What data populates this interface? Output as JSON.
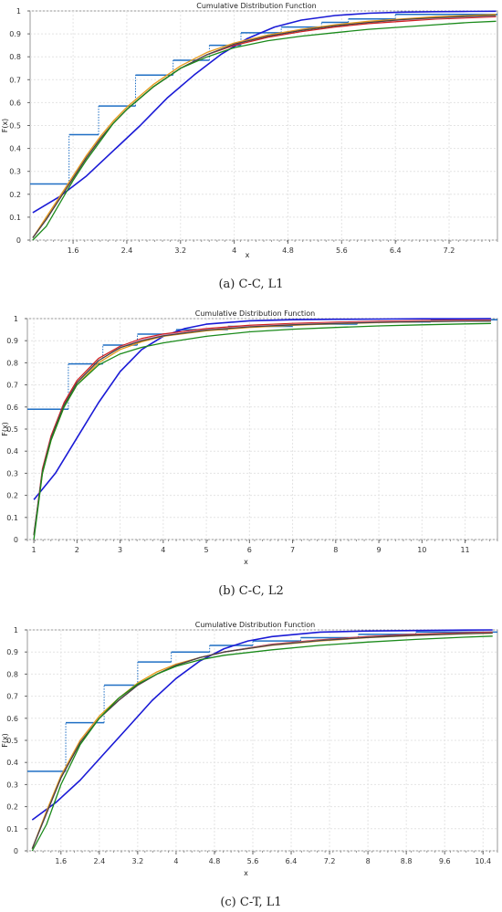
{
  "chart_data": [
    {
      "type": "line",
      "title": "Cumulative Distribution Function",
      "xlabel": "x",
      "ylabel": "F(x)",
      "caption": "(a) C-C, L1",
      "xlim": [
        0.96,
        7.92
      ],
      "ylim": [
        0,
        1
      ],
      "xticks": [
        1.6,
        2.4,
        3.2,
        4,
        4.8,
        5.6,
        6.4,
        7.2
      ],
      "xtick_labels": [
        "1.6",
        "2.4",
        "3.2",
        "4",
        "4.8",
        "5.6",
        "6.4",
        "7.2"
      ],
      "yticks": [
        0,
        0.1,
        0.2,
        0.3,
        0.4,
        0.5,
        0.6,
        0.7,
        0.8,
        0.9,
        1
      ],
      "ytick_labels": [
        "0",
        "0.1",
        "0.2",
        "0.3",
        "0.4",
        "0.5",
        "0.6",
        "0.7",
        "0.8",
        "0.9",
        "1"
      ],
      "grid": true,
      "step": {
        "color": "#1f6fc4",
        "x": [
          0.96,
          1.54,
          1.98,
          2.53,
          3.09,
          3.63,
          4.1,
          4.7,
          5.3,
          5.7,
          6.4,
          7.92
        ],
        "y": [
          0.245,
          0.46,
          0.585,
          0.72,
          0.785,
          0.85,
          0.905,
          0.93,
          0.95,
          0.965,
          0.985,
          1.0
        ]
      },
      "series": [
        {
          "color": "#1a1ad6",
          "x": [
            1.0,
            1.4,
            1.8,
            2.2,
            2.6,
            3.0,
            3.4,
            3.8,
            4.2,
            4.6,
            5.0,
            5.5,
            6.0,
            6.5,
            7.0,
            7.5,
            7.9
          ],
          "y": [
            0.12,
            0.19,
            0.28,
            0.39,
            0.5,
            0.62,
            0.72,
            0.81,
            0.88,
            0.93,
            0.96,
            0.98,
            0.99,
            0.995,
            0.997,
            0.998,
            0.999
          ]
        },
        {
          "color": "#e69a1a",
          "x": [
            1.0,
            1.2,
            1.4,
            1.6,
            1.8,
            2.0,
            2.2,
            2.4,
            2.8,
            3.2,
            3.6,
            4.0,
            4.5,
            5.0,
            5.5,
            6.0,
            6.5,
            7.0,
            7.5,
            7.9
          ],
          "y": [
            0.01,
            0.1,
            0.19,
            0.28,
            0.37,
            0.45,
            0.52,
            0.58,
            0.68,
            0.76,
            0.82,
            0.86,
            0.895,
            0.92,
            0.94,
            0.955,
            0.965,
            0.975,
            0.98,
            0.985
          ]
        },
        {
          "color": "#d02020",
          "x": [
            1.0,
            1.2,
            1.4,
            1.6,
            1.8,
            2.0,
            2.2,
            2.4,
            2.8,
            3.2,
            3.6,
            4.0,
            4.5,
            5.0,
            5.5,
            6.0,
            6.5,
            7.0,
            7.5,
            7.9
          ],
          "y": [
            0.01,
            0.09,
            0.18,
            0.27,
            0.36,
            0.44,
            0.51,
            0.57,
            0.67,
            0.75,
            0.81,
            0.85,
            0.885,
            0.91,
            0.93,
            0.945,
            0.955,
            0.965,
            0.97,
            0.975
          ]
        },
        {
          "color": "#e8a0c0",
          "x": [
            1.0,
            1.2,
            1.4,
            1.6,
            1.8,
            2.0,
            2.2,
            2.4,
            2.8,
            3.2,
            3.6,
            4.0,
            4.5,
            5.0,
            5.5,
            6.0,
            6.5,
            7.0,
            7.5,
            7.9
          ],
          "y": [
            0.01,
            0.09,
            0.18,
            0.27,
            0.36,
            0.44,
            0.51,
            0.57,
            0.67,
            0.75,
            0.81,
            0.855,
            0.89,
            0.915,
            0.935,
            0.95,
            0.96,
            0.968,
            0.974,
            0.978
          ]
        },
        {
          "color": "#444444",
          "x": [
            1.0,
            1.2,
            1.4,
            1.6,
            1.8,
            2.0,
            2.2,
            2.4,
            2.8,
            3.2,
            3.6,
            4.0,
            4.5,
            5.0,
            5.5,
            6.0,
            6.5,
            7.0,
            7.5,
            7.9
          ],
          "y": [
            0.01,
            0.09,
            0.18,
            0.27,
            0.36,
            0.44,
            0.51,
            0.57,
            0.67,
            0.75,
            0.81,
            0.855,
            0.89,
            0.915,
            0.935,
            0.95,
            0.962,
            0.97,
            0.976,
            0.98
          ]
        },
        {
          "color": "#1a8a1a",
          "x": [
            1.0,
            1.2,
            1.4,
            1.6,
            1.8,
            2.0,
            2.2,
            2.4,
            2.8,
            3.2,
            3.6,
            4.0,
            4.5,
            5.0,
            5.5,
            6.0,
            6.5,
            7.0,
            7.5,
            7.9
          ],
          "y": [
            0.0,
            0.06,
            0.16,
            0.26,
            0.35,
            0.43,
            0.51,
            0.57,
            0.67,
            0.75,
            0.8,
            0.84,
            0.87,
            0.89,
            0.905,
            0.92,
            0.93,
            0.94,
            0.95,
            0.955
          ]
        }
      ]
    },
    {
      "type": "line",
      "title": "Cumulative Distribution Function",
      "xlabel": "x",
      "ylabel": "F(x)",
      "caption": "(b) C-C, L2",
      "xlim": [
        0.85,
        11.75
      ],
      "ylim": [
        0,
        1
      ],
      "xticks": [
        1,
        2,
        3,
        4,
        5,
        6,
        7,
        8,
        9,
        10,
        11
      ],
      "xtick_labels": [
        "1",
        "2",
        "3",
        "4",
        "5",
        "6",
        "7",
        "8",
        "9",
        "10",
        "11"
      ],
      "yticks": [
        0,
        0.1,
        0.2,
        0.3,
        0.4,
        0.5,
        0.6,
        0.7,
        0.8,
        0.9,
        1
      ],
      "ytick_labels": [
        "0",
        "0.1",
        "0.2",
        "0.3",
        "0.4",
        "0.5",
        "0.6",
        "0.7",
        "0.8",
        "0.9",
        "1"
      ],
      "grid": true,
      "step": {
        "color": "#1f6fc4",
        "x": [
          0.85,
          1.8,
          2.6,
          3.4,
          4.3,
          5.5,
          7.0,
          8.5,
          10.2,
          11.75
        ],
        "y": [
          0.59,
          0.795,
          0.88,
          0.93,
          0.95,
          0.965,
          0.975,
          0.985,
          0.995,
          1.0
        ]
      },
      "series": [
        {
          "color": "#1a1ad6",
          "x": [
            1.0,
            1.5,
            2.0,
            2.5,
            3.0,
            3.5,
            4.0,
            4.5,
            5.0,
            6.0,
            7.0,
            8.0,
            9.0,
            10.0,
            11.0,
            11.6
          ],
          "y": [
            0.18,
            0.3,
            0.46,
            0.62,
            0.76,
            0.86,
            0.92,
            0.955,
            0.975,
            0.99,
            0.995,
            0.997,
            0.998,
            0.999,
            0.999,
            1.0
          ]
        },
        {
          "color": "#e69a1a",
          "x": [
            1.0,
            1.2,
            1.4,
            1.7,
            2.0,
            2.5,
            3.0,
            3.5,
            4.0,
            5.0,
            6.0,
            7.0,
            8.0,
            9.0,
            10.0,
            11.0,
            11.6
          ],
          "y": [
            0.02,
            0.3,
            0.45,
            0.6,
            0.7,
            0.8,
            0.86,
            0.895,
            0.92,
            0.945,
            0.96,
            0.97,
            0.977,
            0.982,
            0.986,
            0.989,
            0.99
          ]
        },
        {
          "color": "#d02020",
          "x": [
            1.0,
            1.2,
            1.4,
            1.7,
            2.0,
            2.5,
            3.0,
            3.5,
            4.0,
            5.0,
            6.0,
            7.0,
            8.0,
            9.0,
            10.0,
            11.0,
            11.6
          ],
          "y": [
            0.02,
            0.32,
            0.47,
            0.62,
            0.72,
            0.82,
            0.875,
            0.91,
            0.93,
            0.955,
            0.97,
            0.978,
            0.984,
            0.988,
            0.991,
            0.993,
            0.994
          ]
        },
        {
          "color": "#e8a0c0",
          "x": [
            1.0,
            1.2,
            1.4,
            1.7,
            2.0,
            2.5,
            3.0,
            3.5,
            4.0,
            5.0,
            6.0,
            7.0,
            8.0,
            9.0,
            10.0,
            11.0,
            11.6
          ],
          "y": [
            0.02,
            0.31,
            0.46,
            0.61,
            0.71,
            0.81,
            0.87,
            0.905,
            0.925,
            0.95,
            0.965,
            0.974,
            0.98,
            0.985,
            0.988,
            0.99,
            0.991
          ]
        },
        {
          "color": "#444444",
          "x": [
            1.0,
            1.2,
            1.4,
            1.7,
            2.0,
            2.5,
            3.0,
            3.5,
            4.0,
            5.0,
            6.0,
            7.0,
            8.0,
            9.0,
            10.0,
            11.0,
            11.6
          ],
          "y": [
            0.02,
            0.31,
            0.46,
            0.61,
            0.71,
            0.81,
            0.868,
            0.9,
            0.922,
            0.948,
            0.963,
            0.972,
            0.978,
            0.983,
            0.986,
            0.988,
            0.989
          ]
        },
        {
          "color": "#1a8a1a",
          "x": [
            1.0,
            1.2,
            1.4,
            1.7,
            2.0,
            2.5,
            3.0,
            3.5,
            4.0,
            5.0,
            6.0,
            7.0,
            8.0,
            9.0,
            10.0,
            11.0,
            11.6
          ],
          "y": [
            0.0,
            0.3,
            0.45,
            0.6,
            0.7,
            0.79,
            0.84,
            0.87,
            0.89,
            0.92,
            0.94,
            0.952,
            0.96,
            0.967,
            0.972,
            0.976,
            0.978
          ]
        }
      ]
    },
    {
      "type": "line",
      "title": "Cumulative Distribution Function",
      "xlabel": "x",
      "ylabel": "F(x)",
      "caption": "(c) C-T, L1",
      "xlim": [
        0.9,
        10.7
      ],
      "ylim": [
        0,
        1
      ],
      "xticks": [
        1.6,
        2.4,
        3.2,
        4,
        4.8,
        5.6,
        6.4,
        7.2,
        8,
        8.8,
        9.6,
        10.4
      ],
      "xtick_labels": [
        "1.6",
        "2.4",
        "3.2",
        "4",
        "4.8",
        "5.6",
        "6.4",
        "7.2",
        "8",
        "8.8",
        "9.6",
        "10.4"
      ],
      "yticks": [
        0,
        0.1,
        0.2,
        0.3,
        0.4,
        0.5,
        0.6,
        0.7,
        0.8,
        0.9,
        1
      ],
      "ytick_labels": [
        "0",
        "0.1",
        "0.2",
        "0.3",
        "0.4",
        "0.5",
        "0.6",
        "0.7",
        "0.8",
        "0.9",
        "1"
      ],
      "grid": true,
      "step": {
        "color": "#1f6fc4",
        "x": [
          0.9,
          1.7,
          2.5,
          3.2,
          3.9,
          4.7,
          5.6,
          6.6,
          7.8,
          9.0,
          10.7
        ],
        "y": [
          0.36,
          0.58,
          0.75,
          0.855,
          0.9,
          0.93,
          0.95,
          0.965,
          0.98,
          0.99,
          1.0
        ]
      },
      "series": [
        {
          "color": "#1a1ad6",
          "x": [
            1.0,
            1.5,
            2.0,
            2.5,
            3.0,
            3.5,
            4.0,
            4.5,
            5.0,
            5.5,
            6.0,
            7.0,
            8.0,
            9.0,
            10.0,
            10.6
          ],
          "y": [
            0.14,
            0.22,
            0.32,
            0.44,
            0.56,
            0.68,
            0.78,
            0.86,
            0.915,
            0.95,
            0.97,
            0.99,
            0.995,
            0.997,
            0.999,
            1.0
          ]
        },
        {
          "color": "#e69a1a",
          "x": [
            1.0,
            1.3,
            1.6,
            2.0,
            2.4,
            2.8,
            3.2,
            3.6,
            4.0,
            4.5,
            5.0,
            6.0,
            7.0,
            8.0,
            9.0,
            10.0,
            10.6
          ],
          "y": [
            0.01,
            0.18,
            0.34,
            0.5,
            0.61,
            0.69,
            0.76,
            0.81,
            0.845,
            0.875,
            0.9,
            0.93,
            0.95,
            0.965,
            0.975,
            0.982,
            0.985
          ]
        },
        {
          "color": "#d02020",
          "x": [
            1.0,
            1.3,
            1.6,
            2.0,
            2.4,
            2.8,
            3.2,
            3.6,
            4.0,
            4.5,
            5.0,
            6.0,
            7.0,
            8.0,
            9.0,
            10.0,
            10.6
          ],
          "y": [
            0.01,
            0.17,
            0.33,
            0.49,
            0.6,
            0.68,
            0.75,
            0.8,
            0.84,
            0.875,
            0.9,
            0.935,
            0.955,
            0.97,
            0.98,
            0.987,
            0.99
          ]
        },
        {
          "color": "#e8a0c0",
          "x": [
            1.0,
            1.3,
            1.6,
            2.0,
            2.4,
            2.8,
            3.2,
            3.6,
            4.0,
            4.5,
            5.0,
            6.0,
            7.0,
            8.0,
            9.0,
            10.0,
            10.6
          ],
          "y": [
            0.01,
            0.17,
            0.33,
            0.49,
            0.6,
            0.68,
            0.75,
            0.8,
            0.84,
            0.875,
            0.9,
            0.933,
            0.953,
            0.967,
            0.977,
            0.984,
            0.987
          ]
        },
        {
          "color": "#444444",
          "x": [
            1.0,
            1.3,
            1.6,
            2.0,
            2.4,
            2.8,
            3.2,
            3.6,
            4.0,
            4.5,
            5.0,
            6.0,
            7.0,
            8.0,
            9.0,
            10.0,
            10.6
          ],
          "y": [
            0.01,
            0.17,
            0.33,
            0.49,
            0.6,
            0.68,
            0.75,
            0.8,
            0.84,
            0.875,
            0.9,
            0.932,
            0.952,
            0.966,
            0.976,
            0.983,
            0.986
          ]
        },
        {
          "color": "#1a8a1a",
          "x": [
            1.0,
            1.3,
            1.6,
            2.0,
            2.4,
            2.8,
            3.2,
            3.6,
            4.0,
            4.5,
            5.0,
            6.0,
            7.0,
            8.0,
            9.0,
            10.0,
            10.6
          ],
          "y": [
            0.0,
            0.12,
            0.3,
            0.48,
            0.6,
            0.69,
            0.755,
            0.8,
            0.835,
            0.865,
            0.885,
            0.91,
            0.93,
            0.945,
            0.957,
            0.967,
            0.972
          ]
        }
      ]
    }
  ]
}
